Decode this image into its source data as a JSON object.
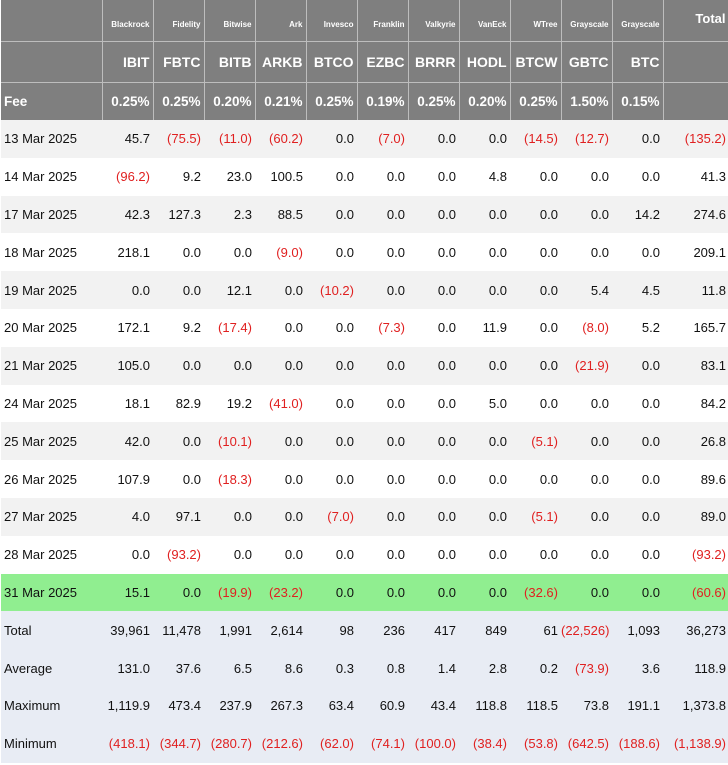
{
  "table": {
    "issuers": [
      "",
      "Blackrock",
      "Fidelity",
      "Bitwise",
      "Ark",
      "Invesco",
      "Franklin",
      "Valkyrie",
      "VanEck",
      "WTree",
      "Grayscale",
      "Grayscale",
      "Total"
    ],
    "tickers": [
      "",
      "IBIT",
      "FBTC",
      "BITB",
      "ARKB",
      "BTCO",
      "EZBC",
      "BRRR",
      "HODL",
      "BTCW",
      "GBTC",
      "BTC",
      ""
    ],
    "fees": [
      "Fee",
      "0.25%",
      "0.25%",
      "0.20%",
      "0.21%",
      "0.25%",
      "0.19%",
      "0.25%",
      "0.20%",
      "0.25%",
      "1.50%",
      "0.15%",
      ""
    ],
    "rows": [
      [
        "13 Mar 2025",
        "45.7",
        "(75.5)",
        "(11.0)",
        "(60.2)",
        "0.0",
        "(7.0)",
        "0.0",
        "0.0",
        "(14.5)",
        "(12.7)",
        "0.0",
        "(135.2)"
      ],
      [
        "14 Mar 2025",
        "(96.2)",
        "9.2",
        "23.0",
        "100.5",
        "0.0",
        "0.0",
        "0.0",
        "4.8",
        "0.0",
        "0.0",
        "0.0",
        "41.3"
      ],
      [
        "17 Mar 2025",
        "42.3",
        "127.3",
        "2.3",
        "88.5",
        "0.0",
        "0.0",
        "0.0",
        "0.0",
        "0.0",
        "0.0",
        "14.2",
        "274.6"
      ],
      [
        "18 Mar 2025",
        "218.1",
        "0.0",
        "0.0",
        "(9.0)",
        "0.0",
        "0.0",
        "0.0",
        "0.0",
        "0.0",
        "0.0",
        "0.0",
        "209.1"
      ],
      [
        "19 Mar 2025",
        "0.0",
        "0.0",
        "12.1",
        "0.0",
        "(10.2)",
        "0.0",
        "0.0",
        "0.0",
        "0.0",
        "5.4",
        "4.5",
        "11.8"
      ],
      [
        "20 Mar 2025",
        "172.1",
        "9.2",
        "(17.4)",
        "0.0",
        "0.0",
        "(7.3)",
        "0.0",
        "11.9",
        "0.0",
        "(8.0)",
        "5.2",
        "165.7"
      ],
      [
        "21 Mar 2025",
        "105.0",
        "0.0",
        "0.0",
        "0.0",
        "0.0",
        "0.0",
        "0.0",
        "0.0",
        "0.0",
        "(21.9)",
        "0.0",
        "83.1"
      ],
      [
        "24 Mar 2025",
        "18.1",
        "82.9",
        "19.2",
        "(41.0)",
        "0.0",
        "0.0",
        "0.0",
        "5.0",
        "0.0",
        "0.0",
        "0.0",
        "84.2"
      ],
      [
        "25 Mar 2025",
        "42.0",
        "0.0",
        "(10.1)",
        "0.0",
        "0.0",
        "0.0",
        "0.0",
        "0.0",
        "(5.1)",
        "0.0",
        "0.0",
        "26.8"
      ],
      [
        "26 Mar 2025",
        "107.9",
        "0.0",
        "(18.3)",
        "0.0",
        "0.0",
        "0.0",
        "0.0",
        "0.0",
        "0.0",
        "0.0",
        "0.0",
        "89.6"
      ],
      [
        "27 Mar 2025",
        "4.0",
        "97.1",
        "0.0",
        "0.0",
        "(7.0)",
        "0.0",
        "0.0",
        "0.0",
        "(5.1)",
        "0.0",
        "0.0",
        "89.0"
      ],
      [
        "28 Mar 2025",
        "0.0",
        "(93.2)",
        "0.0",
        "0.0",
        "0.0",
        "0.0",
        "0.0",
        "0.0",
        "0.0",
        "0.0",
        "0.0",
        "(93.2)"
      ],
      [
        "31 Mar 2025",
        "15.1",
        "0.0",
        "(19.9)",
        "(23.2)",
        "0.0",
        "0.0",
        "0.0",
        "0.0",
        "(32.6)",
        "0.0",
        "0.0",
        "(60.6)"
      ]
    ],
    "highlight_row_index": 12,
    "summary": [
      [
        "Total",
        "39,961",
        "11,478",
        "1,991",
        "2,614",
        "98",
        "236",
        "417",
        "849",
        "61",
        "(22,526)",
        "1,093",
        "36,273"
      ],
      [
        "Average",
        "131.0",
        "37.6",
        "6.5",
        "8.6",
        "0.3",
        "0.8",
        "1.4",
        "2.8",
        "0.2",
        "(73.9)",
        "3.6",
        "118.9"
      ],
      [
        "Maximum",
        "1,119.9",
        "473.4",
        "237.9",
        "267.3",
        "63.4",
        "60.9",
        "43.4",
        "118.8",
        "118.5",
        "73.8",
        "191.1",
        "1,373.8"
      ],
      [
        "Minimum",
        "(418.1)",
        "(344.7)",
        "(280.7)",
        "(212.6)",
        "(62.0)",
        "(74.1)",
        "(100.0)",
        "(38.4)",
        "(53.8)",
        "(642.5)",
        "(188.6)",
        "(1,138.9)"
      ]
    ],
    "colors": {
      "header_bg": "#7f7f7f",
      "highlight": "#90ee90",
      "negative": "#e02020",
      "summary_bg": "#e8ecf4",
      "stripe": "#f2f2f2"
    }
  }
}
